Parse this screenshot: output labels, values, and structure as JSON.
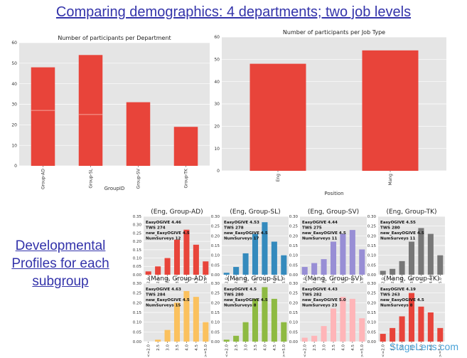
{
  "slide": {
    "title": "Comparing demographics: 4 departments; two job levels",
    "side_lines": [
      "Developmental",
      "Profiles for each",
      "subgroup"
    ],
    "watermark": "StageLens.com"
  },
  "colors": {
    "bar_red": "#e8443a",
    "panel_bg": "#e5e5e5",
    "grid": "#ffffff",
    "title_blue": "#3333aa",
    "series": [
      "#e8443a",
      "#348abd",
      "#988ed5",
      "#777777",
      "#fbc15e",
      "#8eba42",
      "#ffb5b8",
      "#e8443a"
    ]
  },
  "chart_data": [
    {
      "type": "bar",
      "title": "Number of participants per Department",
      "xlabel": "GroupID",
      "ylabel": "",
      "categories": [
        "Group-AD",
        "Group-SL",
        "Group-SV",
        "Group-TK"
      ],
      "values": [
        48,
        54,
        31,
        19
      ],
      "segment_lines": [
        27,
        25,
        null,
        null
      ],
      "ylim": [
        0,
        60
      ],
      "yticks": [
        "0",
        "10",
        "20",
        "30",
        "40",
        "50",
        "60"
      ],
      "grid": true
    },
    {
      "type": "bar",
      "title": "Number of participants per Job Type",
      "xlabel": "Position",
      "ylabel": "",
      "categories": [
        "Eng",
        "Mang"
      ],
      "values": [
        48,
        54
      ],
      "ylim": [
        0,
        60
      ],
      "yticks": [
        "0",
        "10",
        "20",
        "30",
        "40",
        "50",
        "60"
      ],
      "grid": true
    },
    {
      "type": "bar",
      "title": "(Eng, Group-AD)",
      "categories": [
        "<=2.0",
        "2.5",
        "3.0",
        "3.5",
        "4.0",
        "4.5",
        ">=5.0"
      ],
      "values": [
        0.02,
        0.05,
        0.1,
        0.21,
        0.27,
        0.18,
        0.08
      ],
      "ylim": [
        0,
        0.35
      ],
      "yticks": [
        "0.00",
        "0.05",
        "0.10",
        "0.15",
        "0.20",
        "0.25",
        "0.30",
        "0.35"
      ],
      "annotations": [
        "EasyOGIVE 4.46",
        "TWS 274",
        "new_EasyOGIVE 4.5",
        "NumSurveys 12"
      ]
    },
    {
      "type": "bar",
      "title": "(Eng, Group-SL)",
      "categories": [
        "<=2.0",
        "2.5",
        "3.0",
        "3.5",
        "4.0",
        "4.5",
        ">=5.0"
      ],
      "values": [
        0.01,
        0.04,
        0.11,
        0.21,
        0.27,
        0.17,
        0.1
      ],
      "ylim": [
        0,
        0.3
      ],
      "yticks": [
        "0.00",
        "0.05",
        "0.10",
        "0.15",
        "0.20",
        "0.25",
        "0.30"
      ],
      "annotations": [
        "EasyOGIVE 4.53",
        "TWS 278",
        "new_EasyOGIVE 4.5",
        "NumSurveys 17"
      ]
    },
    {
      "type": "bar",
      "title": "(Eng, Group-SV)",
      "categories": [
        "<=2.0",
        "2.5",
        "3.0",
        "3.5",
        "4.0",
        "4.5",
        ">=5.0"
      ],
      "values": [
        0.04,
        0.06,
        0.08,
        0.17,
        0.21,
        0.23,
        0.13
      ],
      "ylim": [
        0,
        0.3
      ],
      "yticks": [
        "0.00",
        "0.05",
        "0.10",
        "0.15",
        "0.20",
        "0.25",
        "0.30"
      ],
      "annotations": [
        "EasyOGIVE 4.44",
        "TWS 275",
        "new_EasyOGIVE 4.5",
        "NumSurveys 11"
      ]
    },
    {
      "type": "bar",
      "title": "(Eng, Group-TK)",
      "categories": [
        "<=2.0",
        "2.5",
        "3.0",
        "3.5",
        "4.0",
        "4.5",
        ">=5.0"
      ],
      "values": [
        0.02,
        0.03,
        0.07,
        0.17,
        0.24,
        0.21,
        0.1
      ],
      "ylim": [
        0,
        0.3
      ],
      "yticks": [
        "0.00",
        "0.05",
        "0.10",
        "0.15",
        "0.20",
        "0.25",
        "0.30"
      ],
      "annotations": [
        "EasyOGIVE 4.55",
        "TWS 280",
        "new_EasyOGIVE 4.5",
        "NumSurveys 11"
      ]
    },
    {
      "type": "bar",
      "title": "(Mang, Group-AD)",
      "categories": [
        "<=2.0",
        "2.5",
        "3.0",
        "3.5",
        "4.0",
        "4.5",
        ">=5.0"
      ],
      "values": [
        0.0,
        0.01,
        0.06,
        0.2,
        0.26,
        0.23,
        0.1
      ],
      "ylim": [
        0,
        0.3
      ],
      "yticks": [
        "0.00",
        "0.05",
        "0.10",
        "0.15",
        "0.20",
        "0.25",
        "0.30"
      ],
      "annotations": [
        "EasyOGIVE 4.63",
        "TWS 284",
        "new_EasyOGIVE 4.5",
        "NumSurveys 15"
      ]
    },
    {
      "type": "bar",
      "title": "(Mang, Group-SL)",
      "categories": [
        "<=2.0",
        "2.5",
        "3.0",
        "3.5",
        "4.0",
        "4.5",
        ">=5.0"
      ],
      "values": [
        0.01,
        0.03,
        0.1,
        0.22,
        0.28,
        0.22,
        0.1
      ],
      "ylim": [
        0,
        0.3
      ],
      "yticks": [
        "0.00",
        "0.05",
        "0.10",
        "0.15",
        "0.20",
        "0.25",
        "0.30"
      ],
      "annotations": [
        "EasyOGIVE 4.5",
        "TWS 280",
        "new_EasyOGIVE 4.5",
        "NumSurveys 8"
      ]
    },
    {
      "type": "bar",
      "title": "(Mang, Group-SV)",
      "categories": [
        "<=2.0",
        "2.5",
        "3.0",
        "3.5",
        "4.0",
        "4.5",
        ">=5.0"
      ],
      "values": [
        0.02,
        0.03,
        0.08,
        0.17,
        0.23,
        0.22,
        0.12
      ],
      "ylim": [
        0,
        0.3
      ],
      "yticks": [
        "0.00",
        "0.05",
        "0.10",
        "0.15",
        "0.20",
        "0.25",
        "0.30"
      ],
      "annotations": [
        "EasyOGIVE 4.43",
        "TWS 282",
        "new_EasyOGIVE 5.0",
        "NumSurveys 23"
      ]
    },
    {
      "type": "bar",
      "title": "(Mang, Group-TK)",
      "categories": [
        "<=2.0",
        "2.5",
        "3.0",
        "3.5",
        "4.0",
        "4.5",
        ">=5.0"
      ],
      "values": [
        0.04,
        0.07,
        0.13,
        0.25,
        0.18,
        0.15,
        0.07
      ],
      "ylim": [
        0,
        0.3
      ],
      "yticks": [
        "0.00",
        "0.05",
        "0.10",
        "0.15",
        "0.20",
        "0.25",
        "0.30"
      ],
      "annotations": [
        "EasyOGIVE 4.19",
        "TWS 263",
        "new_EasyOGIVE 4.5",
        "NumSurveys 8"
      ]
    }
  ]
}
